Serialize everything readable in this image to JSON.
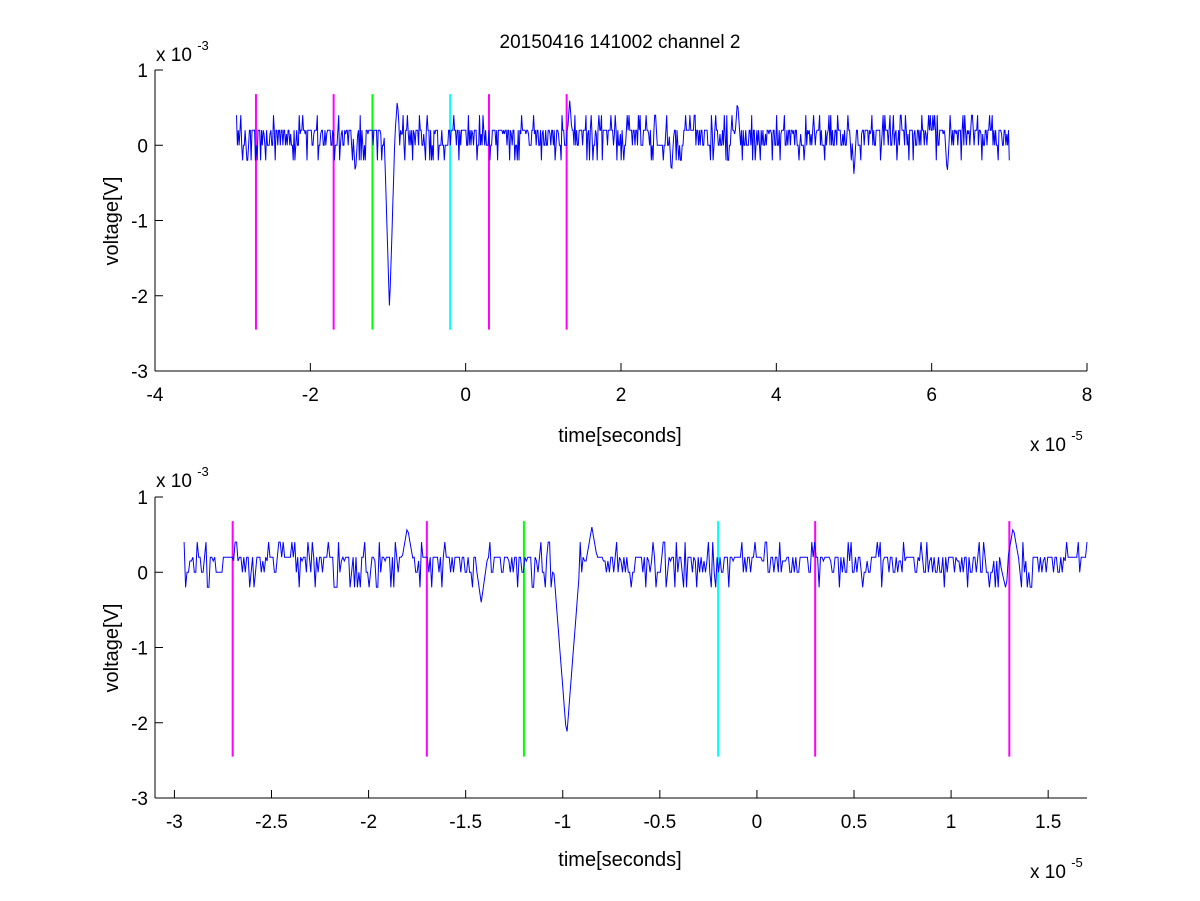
{
  "figure": {
    "title": "20150416 141002 channel 2"
  },
  "colors": {
    "signal": "#0000ff",
    "magenta": "#ff00ff",
    "green": "#00ff00",
    "cyan": "#00ffff",
    "axis": "#000000",
    "background": "#ffffff"
  },
  "chart_data": [
    {
      "type": "line",
      "title": "20150416 141002 channel 2",
      "xlabel": "time[seconds]",
      "ylabel": "voltage[V]",
      "x_multiplier": "x 10",
      "x_exponent": "-5",
      "y_multiplier": "x 10",
      "y_exponent": "-3",
      "xlim": [
        -4,
        8
      ],
      "ylim": [
        -3,
        1
      ],
      "xticks": [
        -4,
        -2,
        0,
        2,
        4,
        6,
        8
      ],
      "xtick_labels": [
        "-4",
        "-2",
        "0",
        "2",
        "4",
        "6",
        "8"
      ],
      "yticks": [
        -3,
        -2,
        -1,
        0,
        1
      ],
      "ytick_labels": [
        "-3",
        "-2",
        "-1",
        "0",
        "1"
      ],
      "grid": false,
      "series": [
        {
          "x_range": [
            -2.95,
            7.0
          ],
          "baseline": 0.15,
          "noise": 0.14,
          "spikes": [
            {
              "x": -0.98,
              "y": -2.2
            },
            {
              "x": -0.88,
              "y": 0.6
            },
            {
              "x": -1.42,
              "y": -0.4
            },
            {
              "x": 2.65,
              "y": -0.4
            },
            {
              "x": 5.0,
              "y": -0.4
            },
            {
              "x": 6.2,
              "y": -0.4
            },
            {
              "x": 3.5,
              "y": 0.6
            },
            {
              "x": 1.34,
              "y": 0.6
            }
          ]
        }
      ],
      "markers": [
        {
          "x": -2.7,
          "color": "#ff00ff"
        },
        {
          "x": -1.7,
          "color": "#ff00ff"
        },
        {
          "x": -1.2,
          "color": "#00ff00"
        },
        {
          "x": -0.2,
          "color": "#00ffff"
        },
        {
          "x": 0.3,
          "color": "#ff00ff"
        },
        {
          "x": 1.3,
          "color": "#ff00ff"
        }
      ],
      "marker_range": [
        -2.45,
        0.68
      ]
    },
    {
      "type": "line",
      "title": "",
      "xlabel": "time[seconds]",
      "ylabel": "voltage[V]",
      "x_multiplier": "x 10",
      "x_exponent": "-5",
      "y_multiplier": "x 10",
      "y_exponent": "-3",
      "xlim": [
        -3.1,
        1.7
      ],
      "ylim": [
        -3,
        1
      ],
      "xticks": [
        -3,
        -2.5,
        -2,
        -1.5,
        -1,
        -0.5,
        0,
        0.5,
        1,
        1.5
      ],
      "xtick_labels": [
        "-3",
        "-2.5",
        "-2",
        "-1.5",
        "-1",
        "-0.5",
        "0",
        "0.5",
        "1",
        "1.5"
      ],
      "yticks": [
        -3,
        -2,
        -1,
        0,
        1
      ],
      "ytick_labels": [
        "-3",
        "-2",
        "-1",
        "0",
        "1"
      ],
      "grid": false,
      "series": [
        {
          "x_range": [
            -2.95,
            1.7
          ],
          "baseline": 0.15,
          "noise": 0.14,
          "spikes": [
            {
              "x": -0.98,
              "y": -2.2
            },
            {
              "x": -0.85,
              "y": 0.6
            },
            {
              "x": -1.42,
              "y": -0.4
            },
            {
              "x": -1.8,
              "y": 0.6
            },
            {
              "x": 1.32,
              "y": 0.6
            },
            {
              "x": 1.28,
              "y": -0.2
            }
          ]
        }
      ],
      "markers": [
        {
          "x": -2.7,
          "color": "#ff00ff"
        },
        {
          "x": -1.7,
          "color": "#ff00ff"
        },
        {
          "x": -1.2,
          "color": "#00ff00"
        },
        {
          "x": -0.2,
          "color": "#00ffff"
        },
        {
          "x": 0.3,
          "color": "#ff00ff"
        },
        {
          "x": 1.3,
          "color": "#ff00ff"
        }
      ],
      "marker_range": [
        -2.45,
        0.68
      ]
    }
  ]
}
